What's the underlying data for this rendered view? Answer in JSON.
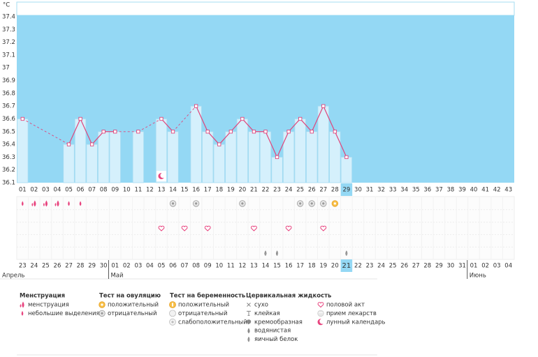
{
  "chart_data": {
    "type": "line",
    "y_unit": "°C",
    "ylim": [
      36.1,
      37.4
    ],
    "yticks": [
      36.1,
      36.2,
      36.3,
      36.4,
      36.5,
      36.6,
      36.7,
      36.8,
      36.9,
      37,
      37.1,
      37.2,
      37.3,
      37.4
    ],
    "line_color": "#e0457b",
    "bar_color": "#d5f0fc",
    "plot_color": "#94d8f4",
    "categories": [
      "01",
      "02",
      "03",
      "04",
      "05",
      "06",
      "07",
      "08",
      "09",
      "10",
      "11",
      "12",
      "13",
      "14",
      "15",
      "16",
      "17",
      "18",
      "19",
      "20",
      "21",
      "22",
      "23",
      "24",
      "25",
      "26",
      "27",
      "28",
      "29",
      "30",
      "31",
      "32",
      "33",
      "34",
      "35",
      "36",
      "37",
      "38",
      "39",
      "40",
      "41",
      "42",
      "43"
    ],
    "values": [
      36.6,
      null,
      null,
      null,
      36.4,
      36.6,
      36.4,
      36.5,
      36.5,
      null,
      36.5,
      null,
      36.6,
      36.5,
      null,
      36.7,
      36.5,
      36.4,
      36.5,
      36.6,
      36.5,
      36.5,
      36.3,
      36.5,
      36.6,
      36.5,
      36.7,
      36.5,
      36.3,
      null,
      null,
      null,
      null,
      null,
      null,
      null,
      null,
      null,
      null,
      null,
      null,
      null,
      null
    ],
    "dates": [
      {
        "label": "23",
        "weekend": false
      },
      {
        "label": "24",
        "weekend": false
      },
      {
        "label": "25",
        "weekend": false
      },
      {
        "label": "26",
        "weekend": true
      },
      {
        "label": "27",
        "weekend": true
      },
      {
        "label": "28",
        "weekend": false
      },
      {
        "label": "29",
        "weekend": false
      },
      {
        "label": "30",
        "weekend": false
      },
      {
        "label": "01",
        "weekend": false
      },
      {
        "label": "02",
        "weekend": false
      },
      {
        "label": "03",
        "weekend": true
      },
      {
        "label": "04",
        "weekend": true
      },
      {
        "label": "05",
        "weekend": false
      },
      {
        "label": "06",
        "weekend": false
      },
      {
        "label": "07",
        "weekend": false
      },
      {
        "label": "08",
        "weekend": false
      },
      {
        "label": "09",
        "weekend": false
      },
      {
        "label": "10",
        "weekend": true
      },
      {
        "label": "11",
        "weekend": true
      },
      {
        "label": "12",
        "weekend": false
      },
      {
        "label": "13",
        "weekend": false
      },
      {
        "label": "14",
        "weekend": false
      },
      {
        "label": "15",
        "weekend": false
      },
      {
        "label": "16",
        "weekend": false
      },
      {
        "label": "17",
        "weekend": true
      },
      {
        "label": "18",
        "weekend": true
      },
      {
        "label": "19",
        "weekend": false
      },
      {
        "label": "20",
        "weekend": false
      },
      {
        "label": "21",
        "weekend": false,
        "highlight": true
      },
      {
        "label": "22",
        "weekend": false
      },
      {
        "label": "23",
        "weekend": false
      },
      {
        "label": "24",
        "weekend": true
      },
      {
        "label": "25",
        "weekend": true
      },
      {
        "label": "26",
        "weekend": false
      },
      {
        "label": "27",
        "weekend": false
      },
      {
        "label": "28",
        "weekend": false
      },
      {
        "label": "29",
        "weekend": false
      },
      {
        "label": "30",
        "weekend": false
      },
      {
        "label": "31",
        "weekend": true
      },
      {
        "label": "01",
        "weekend": true
      },
      {
        "label": "02",
        "weekend": false
      },
      {
        "label": "03",
        "weekend": false
      },
      {
        "label": "04",
        "weekend": false
      }
    ],
    "months": [
      "Апрель",
      "Май",
      "Июнь"
    ],
    "chart_icons": [
      null,
      null,
      null,
      null,
      null,
      null,
      null,
      null,
      null,
      null,
      null,
      null,
      "moon",
      null,
      null,
      null,
      null,
      null,
      null,
      null,
      null,
      null,
      null,
      null,
      null,
      null,
      null,
      null,
      null,
      null,
      null,
      null,
      null,
      null,
      null,
      null,
      null,
      null,
      null,
      null,
      null,
      null,
      null
    ],
    "icon_rows": [
      [
        "drop1",
        "drop2",
        "drop2",
        "drop2",
        "drop1",
        "drop1",
        null,
        null,
        null,
        null,
        null,
        null,
        null,
        "neg",
        null,
        "neg",
        null,
        null,
        null,
        "neg",
        null,
        null,
        null,
        null,
        "neg",
        "neg",
        "neg",
        "pos",
        null,
        null,
        null,
        null,
        null,
        null,
        null,
        null,
        null,
        null,
        null,
        null,
        null,
        null,
        null
      ],
      [
        null,
        null,
        null,
        null,
        null,
        null,
        null,
        null,
        null,
        null,
        null,
        null,
        null,
        null,
        null,
        null,
        null,
        null,
        null,
        null,
        null,
        null,
        null,
        null,
        null,
        null,
        null,
        null,
        null,
        null,
        null,
        null,
        null,
        null,
        null,
        null,
        null,
        null,
        null,
        null,
        null,
        null,
        null
      ],
      [
        null,
        null,
        null,
        null,
        null,
        null,
        null,
        null,
        null,
        null,
        null,
        null,
        "heart",
        null,
        "heart",
        null,
        "heart",
        null,
        null,
        null,
        "heart",
        null,
        null,
        "heart",
        null,
        null,
        "heart",
        null,
        null,
        null,
        null,
        null,
        null,
        null,
        null,
        null,
        null,
        null,
        null,
        null,
        null,
        null,
        null
      ],
      [
        null,
        null,
        null,
        null,
        null,
        null,
        null,
        null,
        null,
        null,
        null,
        null,
        null,
        null,
        null,
        null,
        null,
        null,
        null,
        null,
        null,
        null,
        null,
        null,
        null,
        null,
        null,
        null,
        null,
        null,
        null,
        null,
        null,
        null,
        null,
        null,
        null,
        null,
        null,
        null,
        null,
        null,
        null
      ],
      [
        null,
        null,
        null,
        null,
        null,
        null,
        null,
        null,
        null,
        null,
        null,
        null,
        null,
        null,
        null,
        null,
        null,
        null,
        null,
        null,
        null,
        "egg",
        "egg",
        null,
        null,
        null,
        null,
        null,
        "egg",
        null,
        null,
        null,
        null,
        null,
        null,
        null,
        null,
        null,
        null,
        null,
        null,
        null,
        null
      ]
    ],
    "legend": [
      {
        "title": "Менструация",
        "items": [
          {
            "label": "менструация",
            "icon": "drop2"
          },
          {
            "label": "небольшие выделения",
            "icon": "drop1"
          }
        ]
      },
      {
        "title": "Тест на овуляцию",
        "items": [
          {
            "label": "положительный",
            "icon": "pos"
          },
          {
            "label": "отрицательный",
            "icon": "neg"
          }
        ]
      },
      {
        "title": "Тест на беременность",
        "items": [
          {
            "label": "положительный",
            "icon": "ppos"
          },
          {
            "label": "отрицательный",
            "icon": "pneg"
          },
          {
            "label": "слабоположительный",
            "icon": "pweak"
          }
        ]
      },
      {
        "title": "Цервикальная жидкость",
        "items": [
          {
            "label": "сухо",
            "icon": "x"
          },
          {
            "label": "клейкая",
            "icon": "t"
          },
          {
            "label": "кремообразная",
            "icon": "cream"
          },
          {
            "label": "водянистая",
            "icon": "water"
          },
          {
            "label": "яичный белок",
            "icon": "egg"
          }
        ]
      },
      {
        "items": [
          {
            "label": "половой акт",
            "icon": "heart"
          },
          {
            "label": "прием лекарств",
            "icon": "pill"
          },
          {
            "label": "лунный календарь",
            "icon": "moon"
          }
        ]
      }
    ]
  }
}
